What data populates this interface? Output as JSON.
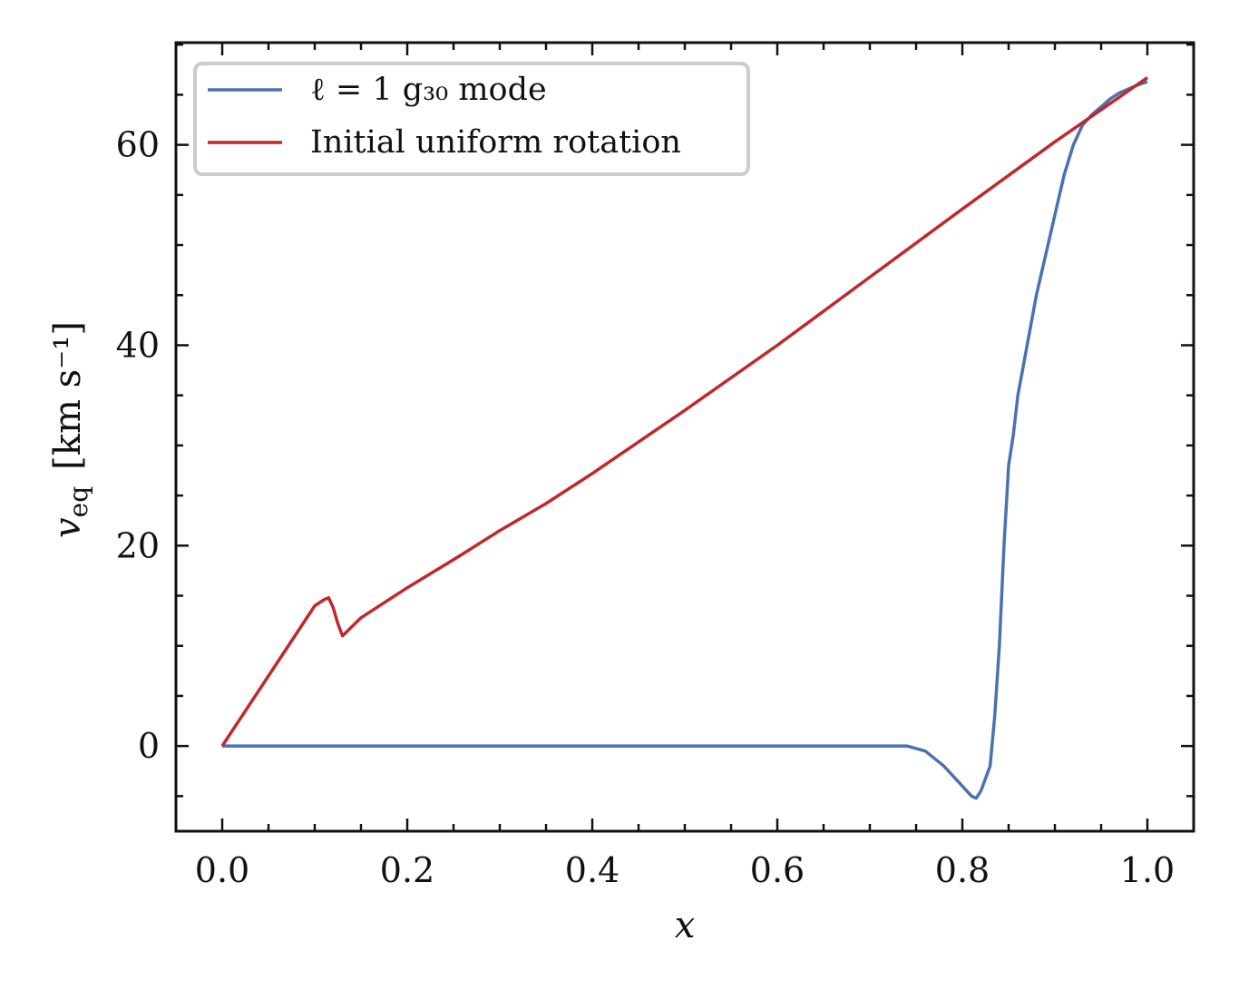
{
  "chart_data": {
    "type": "line",
    "xlabel": "x",
    "ylabel_main": "v",
    "ylabel_sub": "eq",
    "ylabel_units": "[km s⁻¹]",
    "xlim": [
      -0.05,
      1.05
    ],
    "ylim": [
      -8.5,
      70.2
    ],
    "xticks": [
      0.0,
      0.2,
      0.4,
      0.6,
      0.8,
      1.0
    ],
    "xtick_labels": [
      "0.0",
      "0.2",
      "0.4",
      "0.6",
      "0.8",
      "1.0"
    ],
    "yticks": [
      0,
      20,
      40,
      60
    ],
    "ytick_labels": [
      "0",
      "20",
      "40",
      "60"
    ],
    "x_minor_step": 0.05,
    "y_minor_step": 5,
    "grid": false,
    "legend_position": "upper-left",
    "series": [
      {
        "name": "ℓ = 1 g₃₀ mode",
        "color": "#4a72b0",
        "x": [
          0.0,
          0.1,
          0.2,
          0.3,
          0.4,
          0.5,
          0.6,
          0.7,
          0.74,
          0.76,
          0.78,
          0.8,
          0.81,
          0.815,
          0.82,
          0.83,
          0.835,
          0.84,
          0.845,
          0.85,
          0.855,
          0.86,
          0.87,
          0.88,
          0.89,
          0.9,
          0.91,
          0.92,
          0.93,
          0.94,
          0.95,
          0.96,
          0.97,
          0.98,
          0.99,
          1.0
        ],
        "y": [
          0.0,
          0.0,
          0.0,
          0.0,
          0.0,
          0.0,
          0.0,
          0.0,
          0.0,
          -0.5,
          -2.0,
          -4.0,
          -5.0,
          -5.2,
          -4.5,
          -2.0,
          3.0,
          10.0,
          20.0,
          28.0,
          31.0,
          35.0,
          40.0,
          45.0,
          49.0,
          53.0,
          57.0,
          60.0,
          62.0,
          63.0,
          63.8,
          64.6,
          65.2,
          65.6,
          66.0,
          66.3
        ]
      },
      {
        "name": "Initial uniform rotation",
        "color": "#c0282d",
        "x": [
          0.0,
          0.02,
          0.05,
          0.08,
          0.1,
          0.11,
          0.115,
          0.12,
          0.125,
          0.13,
          0.15,
          0.2,
          0.25,
          0.3,
          0.35,
          0.4,
          0.5,
          0.6,
          0.7,
          0.8,
          0.9,
          1.0
        ],
        "y": [
          0.0,
          2.8,
          7.0,
          11.2,
          14.0,
          14.6,
          14.8,
          13.8,
          12.2,
          11.0,
          12.8,
          15.8,
          18.6,
          21.5,
          24.2,
          27.2,
          33.5,
          40.0,
          46.8,
          53.6,
          60.3,
          66.7
        ]
      }
    ]
  }
}
